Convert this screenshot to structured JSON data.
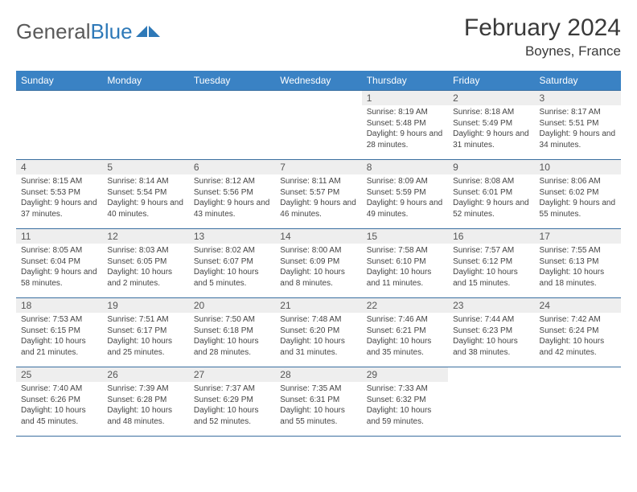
{
  "brand": {
    "part1": "General",
    "part2": "Blue"
  },
  "header": {
    "month_title": "February 2024",
    "location": "Boynes, France",
    "title_fontsize": 30,
    "location_fontsize": 17,
    "title_color": "#3a3a3a"
  },
  "colors": {
    "header_row_bg": "#3a82c4",
    "header_row_text": "#ffffff",
    "daynum_bg": "#eeeeee",
    "row_border": "#3a6fa0",
    "body_text": "#444444",
    "background": "#ffffff"
  },
  "calendar": {
    "type": "table",
    "columns": [
      "Sunday",
      "Monday",
      "Tuesday",
      "Wednesday",
      "Thursday",
      "Friday",
      "Saturday"
    ],
    "weeks": [
      [
        null,
        null,
        null,
        null,
        {
          "n": "1",
          "sr": "8:19 AM",
          "ss": "5:48 PM",
          "dl": "9 hours and 28 minutes."
        },
        {
          "n": "2",
          "sr": "8:18 AM",
          "ss": "5:49 PM",
          "dl": "9 hours and 31 minutes."
        },
        {
          "n": "3",
          "sr": "8:17 AM",
          "ss": "5:51 PM",
          "dl": "9 hours and 34 minutes."
        }
      ],
      [
        {
          "n": "4",
          "sr": "8:15 AM",
          "ss": "5:53 PM",
          "dl": "9 hours and 37 minutes."
        },
        {
          "n": "5",
          "sr": "8:14 AM",
          "ss": "5:54 PM",
          "dl": "9 hours and 40 minutes."
        },
        {
          "n": "6",
          "sr": "8:12 AM",
          "ss": "5:56 PM",
          "dl": "9 hours and 43 minutes."
        },
        {
          "n": "7",
          "sr": "8:11 AM",
          "ss": "5:57 PM",
          "dl": "9 hours and 46 minutes."
        },
        {
          "n": "8",
          "sr": "8:09 AM",
          "ss": "5:59 PM",
          "dl": "9 hours and 49 minutes."
        },
        {
          "n": "9",
          "sr": "8:08 AM",
          "ss": "6:01 PM",
          "dl": "9 hours and 52 minutes."
        },
        {
          "n": "10",
          "sr": "8:06 AM",
          "ss": "6:02 PM",
          "dl": "9 hours and 55 minutes."
        }
      ],
      [
        {
          "n": "11",
          "sr": "8:05 AM",
          "ss": "6:04 PM",
          "dl": "9 hours and 58 minutes."
        },
        {
          "n": "12",
          "sr": "8:03 AM",
          "ss": "6:05 PM",
          "dl": "10 hours and 2 minutes."
        },
        {
          "n": "13",
          "sr": "8:02 AM",
          "ss": "6:07 PM",
          "dl": "10 hours and 5 minutes."
        },
        {
          "n": "14",
          "sr": "8:00 AM",
          "ss": "6:09 PM",
          "dl": "10 hours and 8 minutes."
        },
        {
          "n": "15",
          "sr": "7:58 AM",
          "ss": "6:10 PM",
          "dl": "10 hours and 11 minutes."
        },
        {
          "n": "16",
          "sr": "7:57 AM",
          "ss": "6:12 PM",
          "dl": "10 hours and 15 minutes."
        },
        {
          "n": "17",
          "sr": "7:55 AM",
          "ss": "6:13 PM",
          "dl": "10 hours and 18 minutes."
        }
      ],
      [
        {
          "n": "18",
          "sr": "7:53 AM",
          "ss": "6:15 PM",
          "dl": "10 hours and 21 minutes."
        },
        {
          "n": "19",
          "sr": "7:51 AM",
          "ss": "6:17 PM",
          "dl": "10 hours and 25 minutes."
        },
        {
          "n": "20",
          "sr": "7:50 AM",
          "ss": "6:18 PM",
          "dl": "10 hours and 28 minutes."
        },
        {
          "n": "21",
          "sr": "7:48 AM",
          "ss": "6:20 PM",
          "dl": "10 hours and 31 minutes."
        },
        {
          "n": "22",
          "sr": "7:46 AM",
          "ss": "6:21 PM",
          "dl": "10 hours and 35 minutes."
        },
        {
          "n": "23",
          "sr": "7:44 AM",
          "ss": "6:23 PM",
          "dl": "10 hours and 38 minutes."
        },
        {
          "n": "24",
          "sr": "7:42 AM",
          "ss": "6:24 PM",
          "dl": "10 hours and 42 minutes."
        }
      ],
      [
        {
          "n": "25",
          "sr": "7:40 AM",
          "ss": "6:26 PM",
          "dl": "10 hours and 45 minutes."
        },
        {
          "n": "26",
          "sr": "7:39 AM",
          "ss": "6:28 PM",
          "dl": "10 hours and 48 minutes."
        },
        {
          "n": "27",
          "sr": "7:37 AM",
          "ss": "6:29 PM",
          "dl": "10 hours and 52 minutes."
        },
        {
          "n": "28",
          "sr": "7:35 AM",
          "ss": "6:31 PM",
          "dl": "10 hours and 55 minutes."
        },
        {
          "n": "29",
          "sr": "7:33 AM",
          "ss": "6:32 PM",
          "dl": "10 hours and 59 minutes."
        },
        null,
        null
      ]
    ],
    "labels": {
      "sunrise": "Sunrise:",
      "sunset": "Sunset:",
      "daylight": "Daylight:"
    },
    "cell_fontsize": 10,
    "header_fontsize": 12
  }
}
